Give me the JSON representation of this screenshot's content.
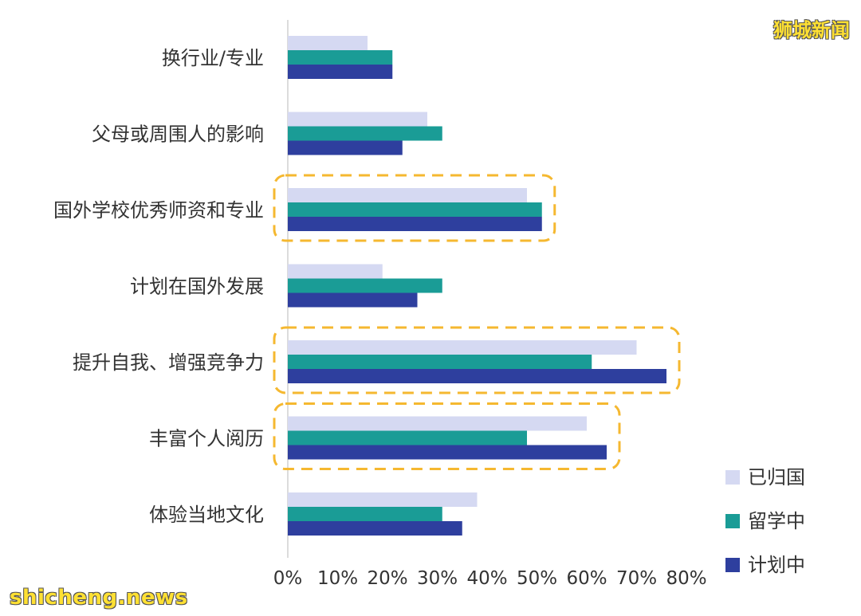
{
  "watermark_top": "狮城新闻",
  "watermark_bottom": "shicheng.news",
  "chart_data": {
    "type": "bar",
    "orientation": "horizontal",
    "title": "",
    "xlabel": "",
    "ylabel": "",
    "xlim": [
      0,
      80
    ],
    "xticks": [
      0,
      10,
      20,
      30,
      40,
      50,
      60,
      70,
      80
    ],
    "xtick_labels": [
      "0%",
      "10%",
      "20%",
      "30%",
      "40%",
      "50%",
      "60%",
      "70%",
      "80%"
    ],
    "categories": [
      "换行业/专业",
      "父母或周围人的影响",
      "国外学校优秀师资和专业",
      "计划在国外发展",
      "提升自我、增强竞争力",
      "丰富个人阅历",
      "体验当地文化"
    ],
    "series": [
      {
        "name": "已归国",
        "color": "#d5d9f2",
        "values": [
          16,
          28,
          48,
          19,
          70,
          60,
          38
        ]
      },
      {
        "name": "留学中",
        "color": "#1a9c96",
        "values": [
          21,
          31,
          51,
          31,
          61,
          48,
          31
        ]
      },
      {
        "name": "计划中",
        "color": "#2e3f9e",
        "values": [
          21,
          23,
          51,
          26,
          76,
          64,
          35
        ]
      }
    ],
    "highlighted_categories": [
      "国外学校优秀师资和专业",
      "提升自我、增强竞争力",
      "丰富个人阅历"
    ],
    "highlight_color": "#f5b830",
    "legend_position": "bottom-right",
    "grid": false
  }
}
